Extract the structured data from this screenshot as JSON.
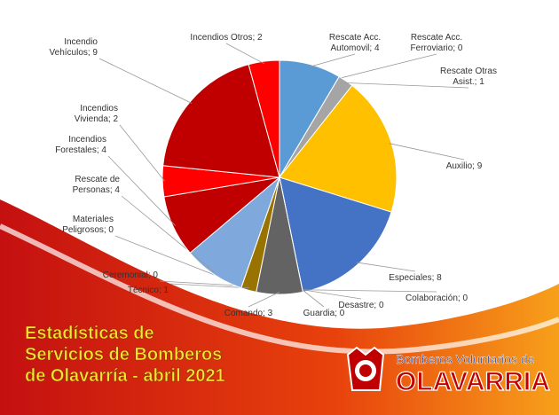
{
  "chart_data": {
    "type": "pie",
    "title": "Estadísticas de\nServicios de Bomberos\nde Olavarría - abril 2021",
    "values": [
      4,
      0,
      1,
      9,
      8,
      0,
      0,
      0,
      3,
      1,
      0,
      0,
      4,
      4,
      2,
      9,
      2
    ],
    "value_labels": [
      "Rescate Acc.\nAutomovil; 4",
      "Rescate Acc.\nFerroviario; 0",
      "Rescate Otras\nAsist.; 1",
      "Auxilio; 9",
      "Especiales; 8",
      "Colaboración; 0",
      "Desastre; 0",
      "Guardia; 0",
      "Comando; 3",
      "Técnico; 1",
      "Ceremonial; 0",
      "Materiales\nPeligrosos; 0",
      "Rescate de\nPersonas; 4",
      "Incendios\nForestales; 4",
      "Incendios\nVivienda; 2",
      "Incendio\nVehículos; 9",
      "Incendios Otros; 2"
    ],
    "colors": [
      "#5b9bd5",
      "#ed7d31",
      "#a5a5a5",
      "#ffc000",
      "#4472c4",
      "#70ad47",
      "#264478",
      "#9e480e",
      "#636363",
      "#997300",
      "#255e91",
      "#43682b",
      "#7fa8dc",
      "#c00000",
      "#ff0000",
      "#c00000",
      "#ff0000"
    ],
    "org": {
      "line1": "Bomberos Voluntarios de",
      "line2": "OLAVARRIA"
    }
  }
}
